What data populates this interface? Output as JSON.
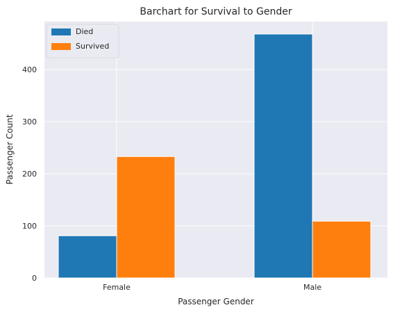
{
  "chart_data": {
    "type": "bar",
    "title": "Barchart for Survival to Gender",
    "xlabel": "Passenger Gender",
    "ylabel": "Passenger Count",
    "categories": [
      "Female",
      "Male"
    ],
    "series": [
      {
        "name": "Died",
        "values": [
          81,
          468
        ],
        "color": "#1f77b4"
      },
      {
        "name": "Survived",
        "values": [
          233,
          109
        ],
        "color": "#ff7f0e"
      }
    ],
    "yticks": [
      0,
      100,
      200,
      300,
      400
    ],
    "ylim": [
      0,
      492
    ],
    "grid": true,
    "legend": {
      "placement": "top-left"
    },
    "background": "#eaeaf2",
    "grid_color": "#ffffff"
  }
}
